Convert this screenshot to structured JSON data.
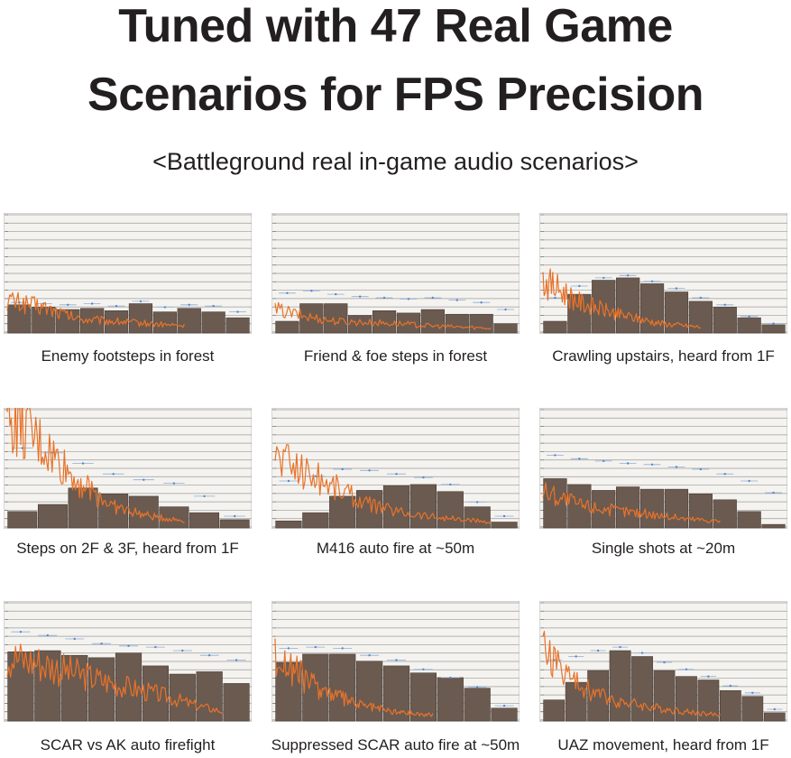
{
  "header": {
    "title_line1": "Tuned with 47 Real Game",
    "title_line2": "Scenarios for FPS Precision",
    "subtitle": "<Battleground real in-game audio scenarios>"
  },
  "colors": {
    "bar": "#6b5a50",
    "trace": "#e8732a",
    "grid": "#9c9c9c",
    "marker": "#5a86c8",
    "panel_bg": "#f5f3ef"
  },
  "chart_data": [
    {
      "type": "bar",
      "caption": "Enemy footsteps in forest",
      "values": [
        24,
        22,
        20,
        21,
        19,
        25,
        18,
        21,
        18,
        13
      ],
      "markers": [
        26,
        25,
        24,
        25,
        23,
        27,
        22,
        24,
        23,
        18
      ],
      "trace": [
        28,
        22,
        12,
        10,
        8,
        6
      ],
      "ylim": [
        0,
        100
      ]
    },
    {
      "type": "bar",
      "caption": "Friend & foe steps in forest",
      "values": [
        10,
        25,
        25,
        15,
        19,
        17,
        20,
        16,
        16,
        8
      ],
      "markers": [
        34,
        36,
        33,
        31,
        30,
        29,
        30,
        28,
        26,
        20
      ],
      "trace": [
        20,
        14,
        10,
        9,
        8,
        6,
        5,
        4
      ],
      "ylim": [
        0,
        100
      ]
    },
    {
      "type": "bar",
      "caption": "Crawling upstairs, heard from 1F",
      "values": [
        10,
        33,
        45,
        47,
        42,
        35,
        27,
        22,
        13,
        7
      ],
      "markers": [
        30,
        40,
        47,
        49,
        44,
        38,
        30,
        24,
        14,
        8
      ],
      "trace": [
        45,
        25,
        15,
        8,
        5
      ],
      "ylim": [
        0,
        100
      ]
    },
    {
      "type": "bar",
      "caption": "Steps on 2F & 3F, heard from 1F",
      "values": [
        14,
        20,
        34,
        29,
        27,
        18,
        13,
        7
      ],
      "markers": [
        68,
        64,
        55,
        46,
        41,
        38,
        27,
        10
      ],
      "trace": [
        95,
        70,
        40,
        18,
        10,
        6
      ],
      "ylim": [
        0,
        100
      ]
    },
    {
      "type": "bar",
      "caption": "M416 auto fire at ~50m",
      "values": [
        6,
        13,
        27,
        32,
        36,
        37,
        31,
        18,
        5
      ],
      "markers": [
        40,
        44,
        50,
        49,
        46,
        43,
        37,
        22,
        10
      ],
      "trace": [
        62,
        48,
        35,
        20,
        14,
        10,
        7,
        5
      ],
      "ylim": [
        0,
        100
      ]
    },
    {
      "type": "bar",
      "caption": "Single shots at ~20m",
      "values": [
        42,
        37,
        32,
        35,
        33,
        33,
        29,
        24,
        14,
        3
      ],
      "markers": [
        62,
        59,
        57,
        55,
        54,
        52,
        50,
        46,
        40,
        30
      ],
      "trace": [
        32,
        20,
        15,
        12,
        8,
        6
      ],
      "ylim": [
        0,
        100
      ]
    },
    {
      "type": "bar",
      "caption": "SCAR vs AK auto firefight",
      "values": [
        59,
        60,
        56,
        54,
        58,
        47,
        40,
        42,
        32
      ],
      "markers": [
        76,
        73,
        70,
        66,
        64,
        63,
        60,
        56,
        52
      ],
      "trace": [
        55,
        50,
        42,
        35,
        28,
        22,
        14,
        8
      ],
      "ylim": [
        0,
        100
      ]
    },
    {
      "type": "bar",
      "caption": "Suppressed SCAR auto fire at ~50m",
      "values": [
        50,
        57,
        57,
        51,
        47,
        41,
        37,
        28,
        11
      ],
      "markers": [
        62,
        63,
        62,
        56,
        52,
        44,
        37,
        29,
        13
      ],
      "trace": [
        55,
        30,
        15,
        8,
        5
      ],
      "ylim": [
        0,
        100
      ]
    },
    {
      "type": "bar",
      "caption": "UAZ movement, heard from 1F",
      "values": [
        18,
        33,
        43,
        60,
        55,
        43,
        38,
        35,
        26,
        21,
        7
      ],
      "markers": [
        52,
        55,
        60,
        63,
        58,
        50,
        44,
        38,
        30,
        24,
        10
      ],
      "trace": [
        62,
        30,
        18,
        12,
        8,
        5
      ],
      "ylim": [
        0,
        100
      ]
    }
  ]
}
